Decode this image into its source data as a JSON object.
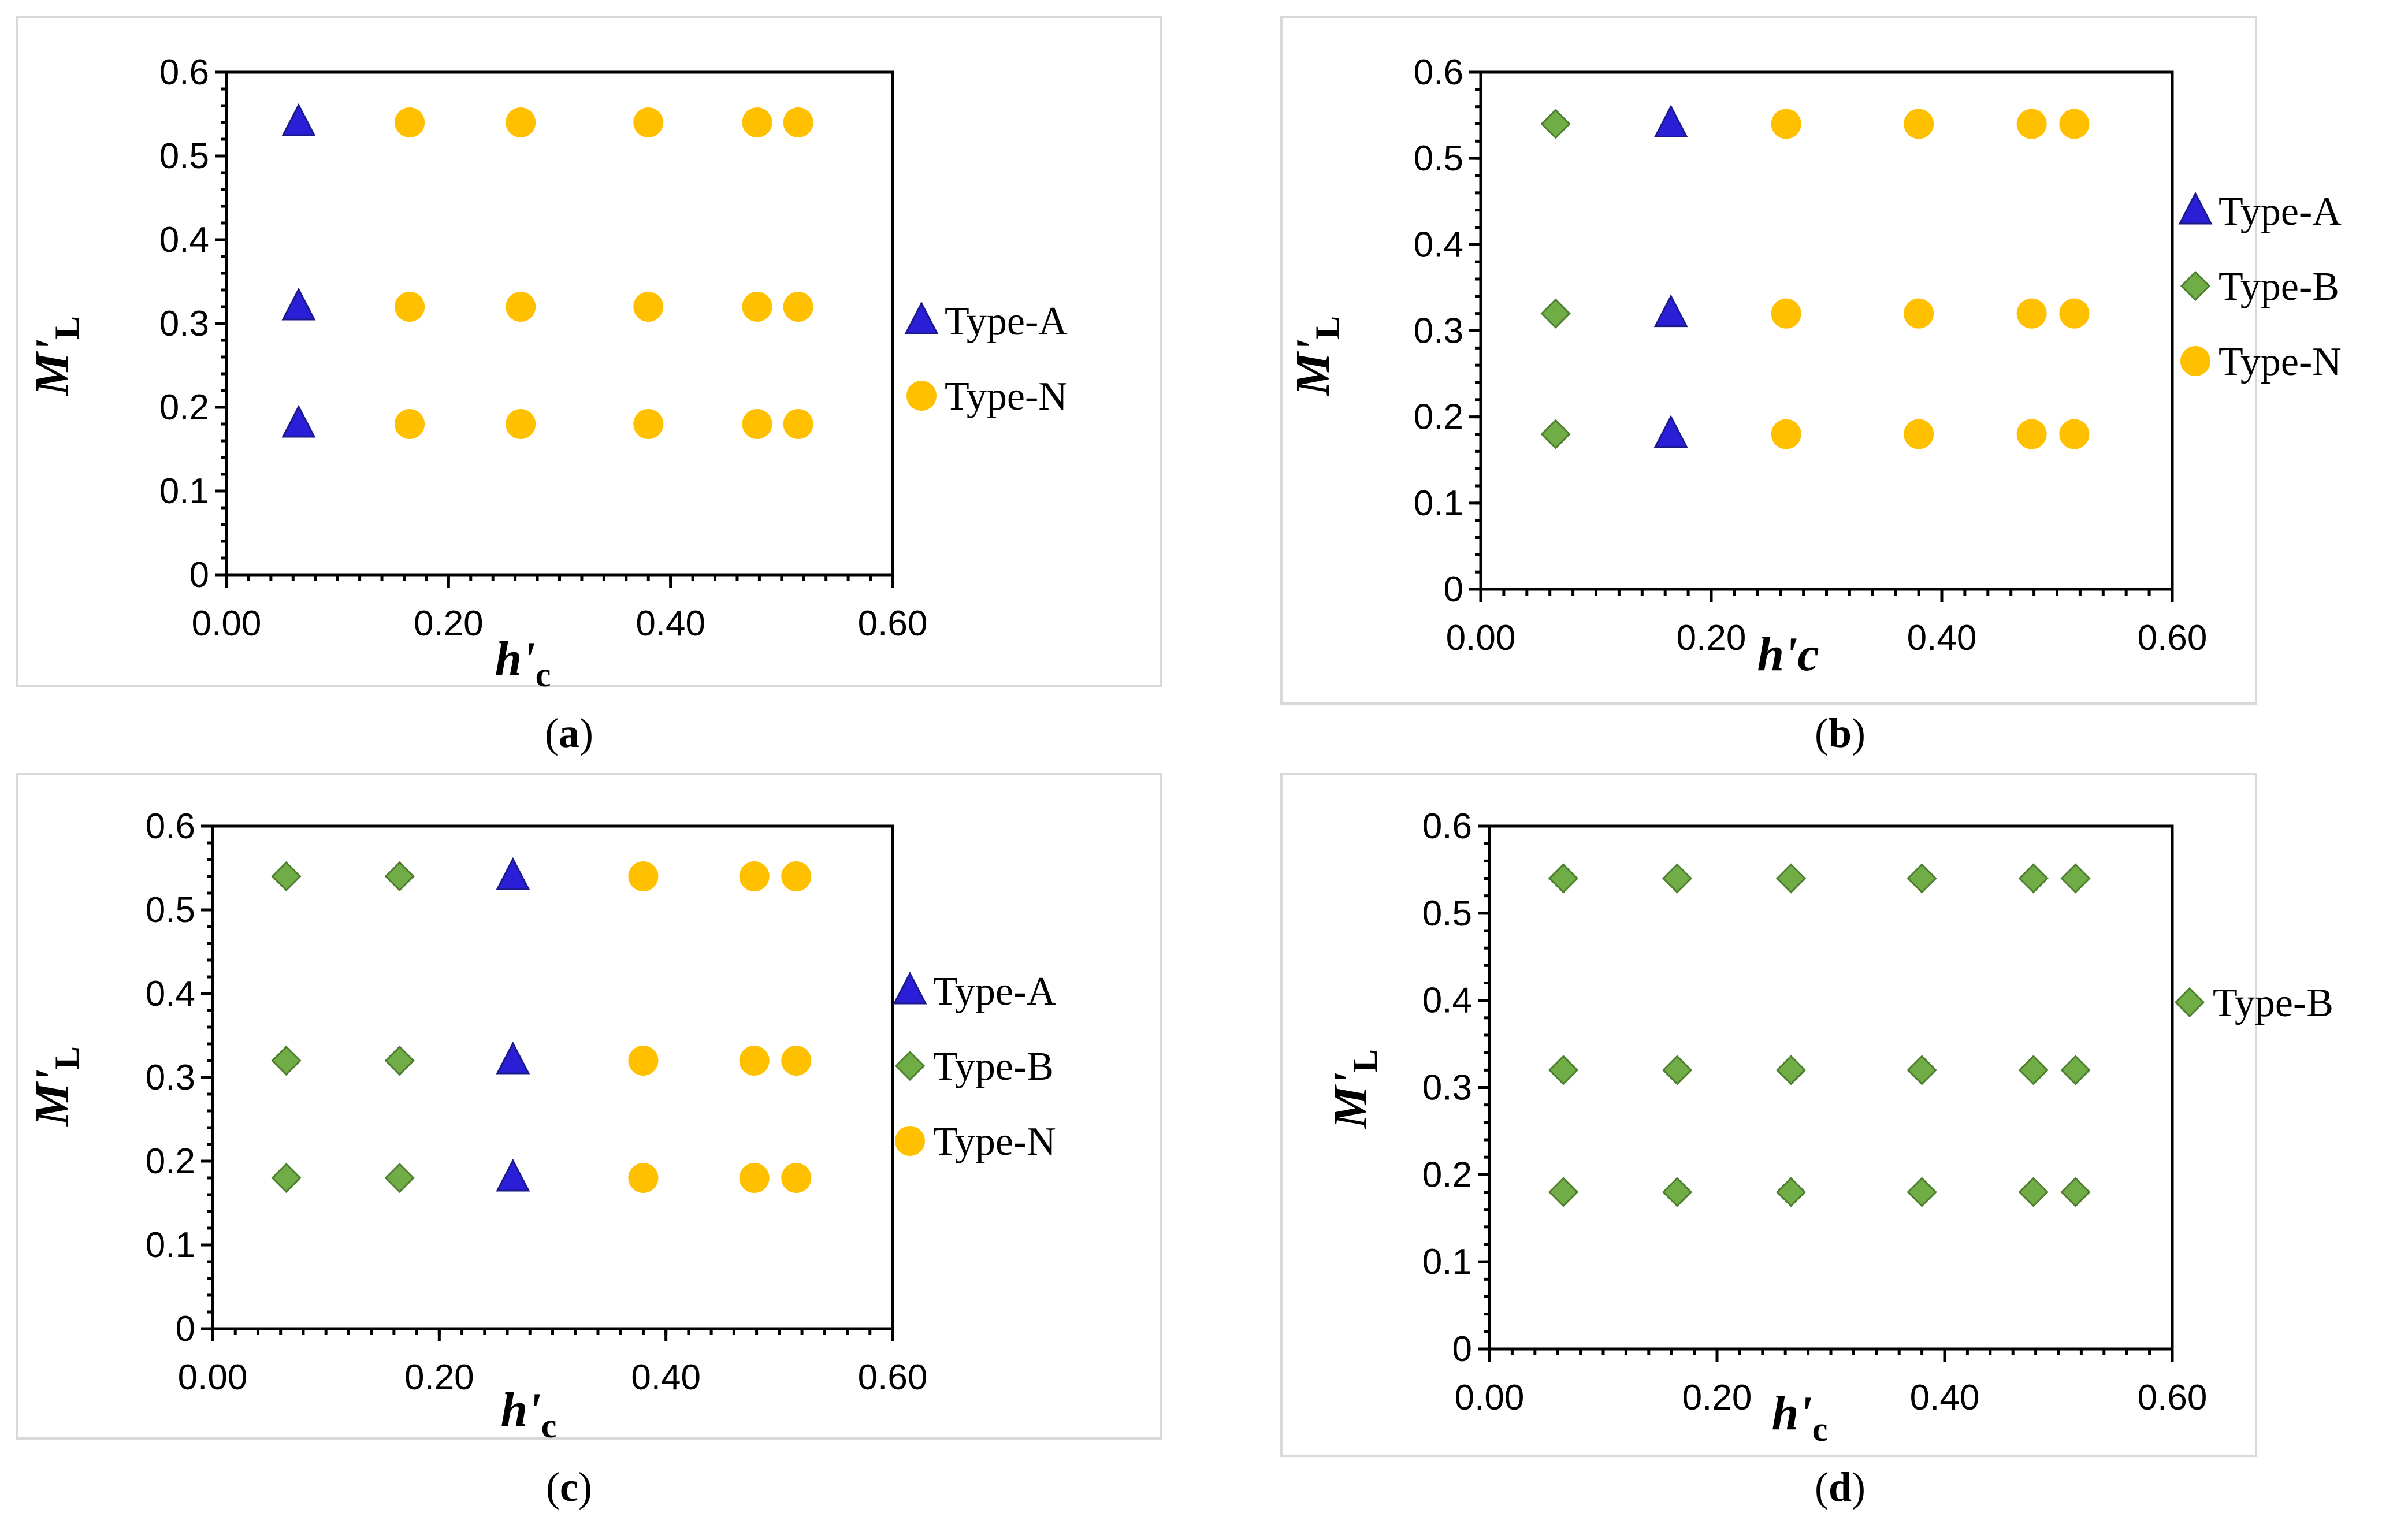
{
  "colors": {
    "type_a": "#2a1fd6",
    "type_b": "#70ad47",
    "type_n": "#ffc000"
  },
  "chart_data": [
    {
      "type": "scatter",
      "caption_letter": "a",
      "xlabel_main": "h'",
      "xlabel_sub": "c",
      "ylabel_main": "M'",
      "ylabel_sub": "L",
      "xlim": [
        0,
        0.6
      ],
      "ylim": [
        0,
        0.6
      ],
      "xticks": [
        "0.00",
        "0.20",
        "0.40",
        "0.60"
      ],
      "yticks": [
        "0",
        "0.1",
        "0.2",
        "0.3",
        "0.4",
        "0.5",
        "0.6"
      ],
      "series": [
        {
          "name": "Type-A",
          "marker": "triangle",
          "color_key": "type_a",
          "x": [
            0.065,
            0.065,
            0.065
          ],
          "y": [
            0.54,
            0.32,
            0.18
          ]
        },
        {
          "name": "Type-N",
          "marker": "circle",
          "color_key": "type_n",
          "x": [
            0.165,
            0.265,
            0.38,
            0.478,
            0.515,
            0.165,
            0.265,
            0.38,
            0.478,
            0.515,
            0.165,
            0.265,
            0.38,
            0.478,
            0.515
          ],
          "y": [
            0.54,
            0.54,
            0.54,
            0.54,
            0.54,
            0.32,
            0.32,
            0.32,
            0.32,
            0.32,
            0.18,
            0.18,
            0.18,
            0.18,
            0.18
          ]
        }
      ]
    },
    {
      "type": "scatter",
      "caption_letter": "b",
      "xlabel_main": "h'c",
      "xlabel_sub": "",
      "ylabel_main": "M'",
      "ylabel_sub": "L",
      "xlim": [
        0,
        0.6
      ],
      "ylim": [
        0,
        0.6
      ],
      "xticks": [
        "0.00",
        "0.20",
        "0.40",
        "0.60"
      ],
      "yticks": [
        "0",
        "0.1",
        "0.2",
        "0.3",
        "0.4",
        "0.5",
        "0.6"
      ],
      "series": [
        {
          "name": "Type-A",
          "marker": "triangle",
          "color_key": "type_a",
          "x": [
            0.165,
            0.165,
            0.165
          ],
          "y": [
            0.54,
            0.32,
            0.18
          ]
        },
        {
          "name": "Type-B",
          "marker": "diamond",
          "color_key": "type_b",
          "x": [
            0.065,
            0.065,
            0.065
          ],
          "y": [
            0.54,
            0.32,
            0.18
          ]
        },
        {
          "name": "Type-N",
          "marker": "circle",
          "color_key": "type_n",
          "x": [
            0.265,
            0.38,
            0.478,
            0.515,
            0.265,
            0.38,
            0.478,
            0.515,
            0.265,
            0.38,
            0.478,
            0.515
          ],
          "y": [
            0.54,
            0.54,
            0.54,
            0.54,
            0.32,
            0.32,
            0.32,
            0.32,
            0.18,
            0.18,
            0.18,
            0.18
          ]
        }
      ]
    },
    {
      "type": "scatter",
      "caption_letter": "c",
      "xlabel_main": "h'",
      "xlabel_sub": "c",
      "ylabel_main": "M'",
      "ylabel_sub": "L",
      "xlim": [
        0,
        0.6
      ],
      "ylim": [
        0,
        0.6
      ],
      "xticks": [
        "0.00",
        "0.20",
        "0.40",
        "0.60"
      ],
      "yticks": [
        "0",
        "0.1",
        "0.2",
        "0.3",
        "0.4",
        "0.5",
        "0.6"
      ],
      "series": [
        {
          "name": "Type-A",
          "marker": "triangle",
          "color_key": "type_a",
          "x": [
            0.265,
            0.265,
            0.265
          ],
          "y": [
            0.54,
            0.32,
            0.18
          ]
        },
        {
          "name": "Type-B",
          "marker": "diamond",
          "color_key": "type_b",
          "x": [
            0.065,
            0.165,
            0.065,
            0.165,
            0.065,
            0.165
          ],
          "y": [
            0.54,
            0.54,
            0.32,
            0.32,
            0.18,
            0.18
          ]
        },
        {
          "name": "Type-N",
          "marker": "circle",
          "color_key": "type_n",
          "x": [
            0.38,
            0.478,
            0.515,
            0.38,
            0.478,
            0.515,
            0.38,
            0.478,
            0.515
          ],
          "y": [
            0.54,
            0.54,
            0.54,
            0.32,
            0.32,
            0.32,
            0.18,
            0.18,
            0.18
          ]
        }
      ]
    },
    {
      "type": "scatter",
      "caption_letter": "d",
      "xlabel_main": "h'",
      "xlabel_sub": "c",
      "ylabel_main": "M'",
      "ylabel_sub": "L",
      "xlim": [
        0,
        0.6
      ],
      "ylim": [
        0,
        0.6
      ],
      "xticks": [
        "0.00",
        "0.20",
        "0.40",
        "0.60"
      ],
      "yticks": [
        "0",
        "0.1",
        "0.2",
        "0.3",
        "0.4",
        "0.5",
        "0.6"
      ],
      "series": [
        {
          "name": "Type-B",
          "marker": "diamond",
          "color_key": "type_b",
          "x": [
            0.065,
            0.165,
            0.265,
            0.38,
            0.478,
            0.515,
            0.065,
            0.165,
            0.265,
            0.38,
            0.478,
            0.515,
            0.065,
            0.165,
            0.265,
            0.38,
            0.478,
            0.515
          ],
          "y": [
            0.54,
            0.54,
            0.54,
            0.54,
            0.54,
            0.54,
            0.32,
            0.32,
            0.32,
            0.32,
            0.32,
            0.32,
            0.18,
            0.18,
            0.18,
            0.18,
            0.18,
            0.18
          ]
        }
      ]
    }
  ]
}
